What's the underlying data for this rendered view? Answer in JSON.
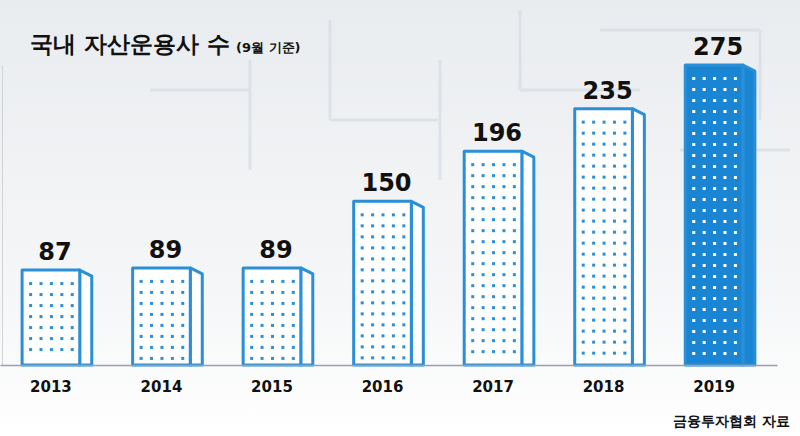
{
  "chart_data": {
    "type": "bar",
    "title": "국내 자산운용사 수",
    "subtitle": "(9월 기준)",
    "source": "금융투자협회 자료",
    "categories": [
      "2013",
      "2014",
      "2015",
      "2016",
      "2017",
      "2018",
      "2019"
    ],
    "values": [
      87,
      89,
      89,
      150,
      196,
      235,
      275
    ],
    "colors": [
      "#ffffff",
      "#ffffff",
      "#ffffff",
      "#ffffff",
      "#ffffff",
      "#ffffff",
      "#1a86d3"
    ],
    "ylim": [
      0,
      275
    ],
    "grid": false,
    "data_labels": true,
    "tick_labels": "x"
  }
}
